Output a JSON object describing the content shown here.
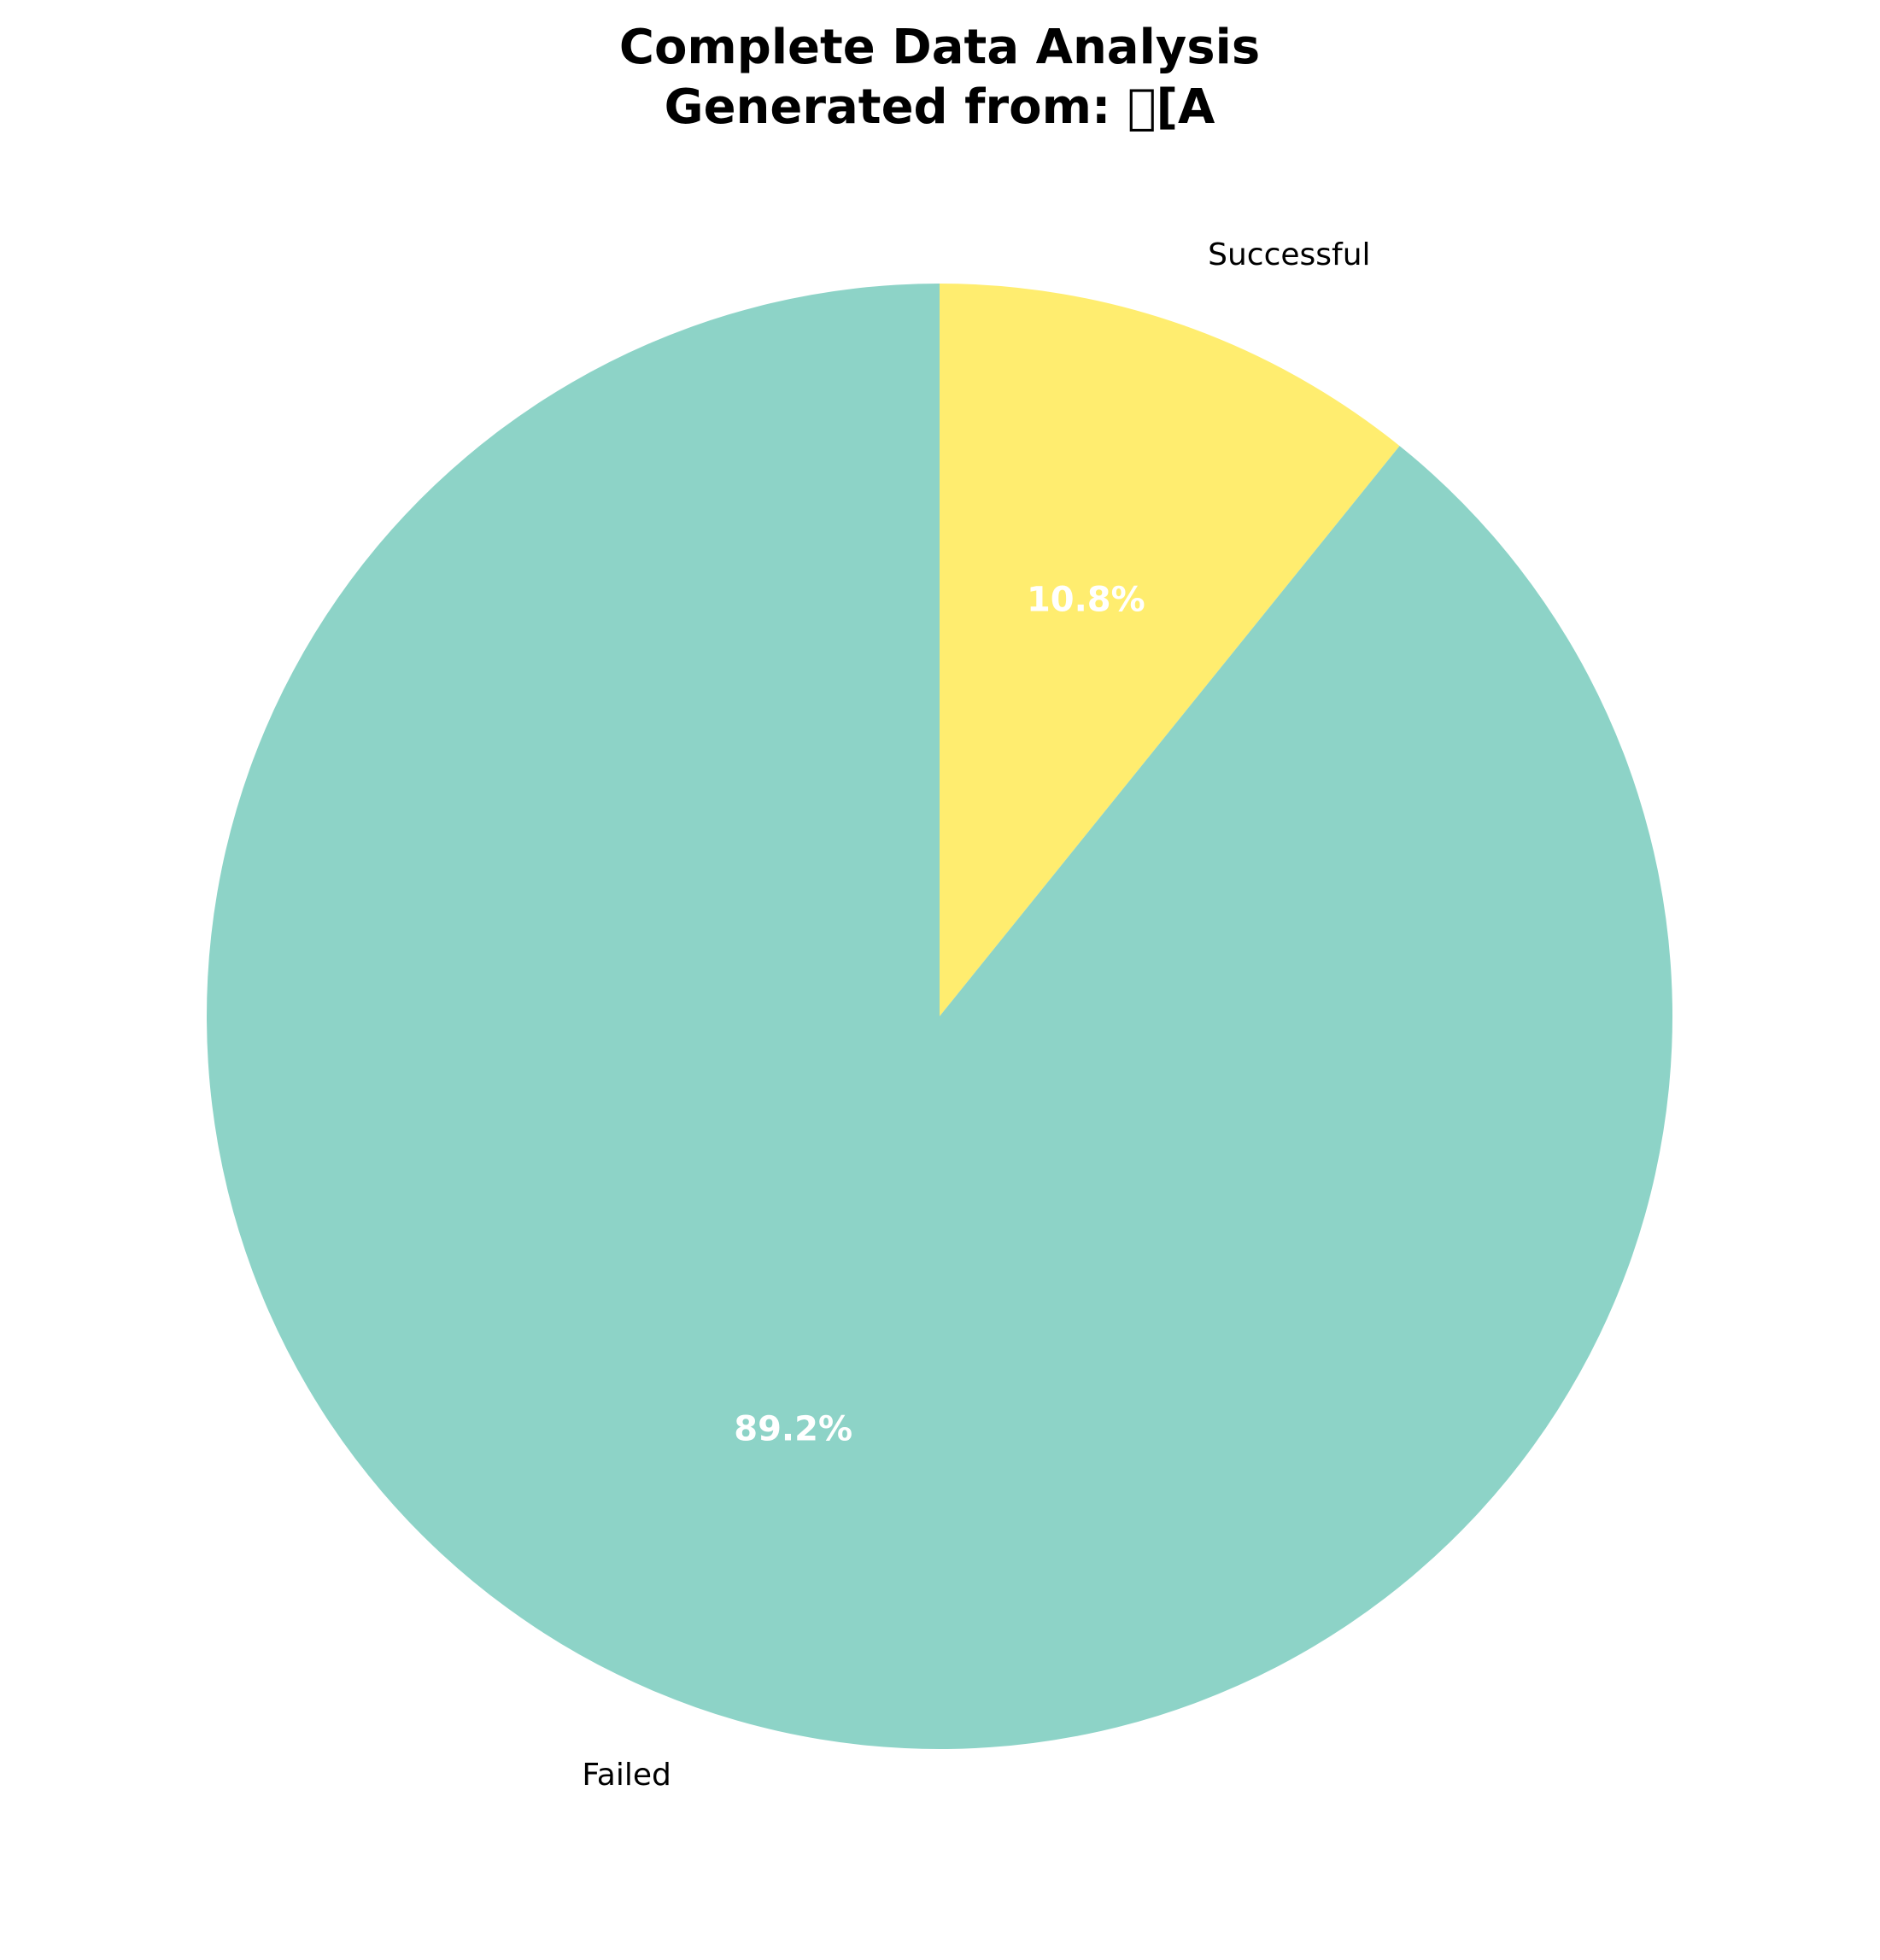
{
  "chart_data": {
    "type": "pie",
    "title": "Complete Data Analysis",
    "subtitle": "Generated from: \u0000[A",
    "start_angle_deg": 90,
    "direction": "clockwise",
    "slices": [
      {
        "label": "Successful",
        "value": 10.8,
        "pct_label": "10.8%",
        "color": "#ffed6f"
      },
      {
        "label": "Failed",
        "value": 89.2,
        "pct_label": "89.2%",
        "color": "#8dd3c7"
      }
    ],
    "legend": "none"
  }
}
